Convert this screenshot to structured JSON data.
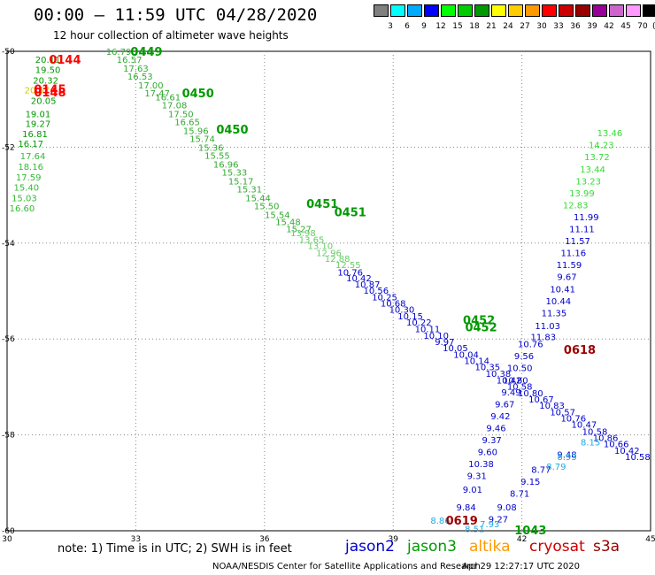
{
  "header": {
    "title": "00:00 – 11:59 UTC 04/28/2020",
    "subtitle": "12 hour collection of altimeter wave heights"
  },
  "color_scale": {
    "swatches": [
      "#808080",
      "#00ffff",
      "#00aaff",
      "#0000ff",
      "#00ff00",
      "#00cc00",
      "#009900",
      "#ffff00",
      "#ffcc00",
      "#ff9900",
      "#ff0000",
      "#cc0000",
      "#990000",
      "#990099",
      "#cc66cc",
      "#ff99ff",
      "#000000"
    ],
    "labels": [
      "3",
      "6",
      "9",
      "12",
      "15",
      "18",
      "21",
      "24",
      "27",
      "30",
      "33",
      "36",
      "39",
      "42",
      "45",
      "70"
    ],
    "unit": "(ft)"
  },
  "footer": {
    "note": "note: 1) Time is in UTC; 2) SWH is in feet",
    "satellites": [
      {
        "name": "jason2",
        "color": "#0000cc"
      },
      {
        "name": "jason3",
        "color": "#009900"
      },
      {
        "name": "altika",
        "color": "#ff9900"
      },
      {
        "name": "cryosat",
        "color": "#cc0000"
      },
      {
        "name": "s3a",
        "color": "#990000"
      }
    ],
    "credit": "NOAA/NESDIS Center for Satellite Applications and Research",
    "timestamp": "Apr 29 12:27:17 UTC 2020"
  },
  "chart_data": {
    "type": "scatter",
    "xlim": [
      30,
      45
    ],
    "ylim": [
      -60,
      -50
    ],
    "x_ticks": [
      30,
      33,
      36,
      39,
      42,
      45
    ],
    "y_ticks": [
      -50,
      -52,
      -54,
      -56,
      -58,
      -60
    ],
    "grid": true,
    "pass_times": [
      {
        "text": "0144",
        "lon": 31.35,
        "lat": -50.17,
        "color": "#ff0000"
      },
      {
        "text": "0145",
        "lon": 31.0,
        "lat": -50.78,
        "color": "#ff0000"
      },
      {
        "text": "0148",
        "lon": 31.0,
        "lat": -50.85,
        "color": "#ff0000"
      },
      {
        "text": "0449",
        "lon": 33.25,
        "lat": -50.0,
        "color": "#009900"
      },
      {
        "text": "0450",
        "lon": 34.45,
        "lat": -50.87,
        "color": "#009900"
      },
      {
        "text": "0450",
        "lon": 35.25,
        "lat": -51.62,
        "color": "#009900"
      },
      {
        "text": "0451",
        "lon": 37.35,
        "lat": -53.17,
        "color": "#009900"
      },
      {
        "text": "0451",
        "lon": 38.0,
        "lat": -53.35,
        "color": "#009900"
      },
      {
        "text": "0452",
        "lon": 41.0,
        "lat": -55.6,
        "color": "#009900"
      },
      {
        "text": "0452",
        "lon": 41.05,
        "lat": -55.75,
        "color": "#009900"
      },
      {
        "text": "0618",
        "lon": 43.35,
        "lat": -56.22,
        "color": "#990000"
      },
      {
        "text": "0619",
        "lon": 40.6,
        "lat": -59.78,
        "color": "#990000"
      },
      {
        "text": "1043",
        "lon": 42.2,
        "lat": -59.98,
        "color": "#009900"
      }
    ],
    "tracks": [
      {
        "satellite": "jason3",
        "color": "#009900",
        "points": [
          {
            "lon": 30.95,
            "lat": -50.17,
            "v": "20.11"
          },
          {
            "lon": 30.95,
            "lat": -50.38,
            "v": "19.50"
          },
          {
            "lon": 30.9,
            "lat": -50.6,
            "v": "20.32"
          },
          {
            "lon": 30.85,
            "lat": -51.02,
            "v": "20.05"
          },
          {
            "lon": 30.72,
            "lat": -51.3,
            "v": "19.01"
          },
          {
            "lon": 30.72,
            "lat": -51.5,
            "v": "19.27"
          },
          {
            "lon": 30.65,
            "lat": -51.72,
            "v": "16.81"
          },
          {
            "lon": 30.55,
            "lat": -51.92,
            "v": "16.17"
          }
        ]
      },
      {
        "satellite": "jason3",
        "color": "#33bb33",
        "points": [
          {
            "lon": 30.6,
            "lat": -52.18,
            "v": "17.64"
          },
          {
            "lon": 30.55,
            "lat": -52.4,
            "v": "18.16"
          },
          {
            "lon": 30.5,
            "lat": -52.62,
            "v": "17.59"
          },
          {
            "lon": 30.45,
            "lat": -52.83,
            "v": "15.40"
          },
          {
            "lon": 30.4,
            "lat": -53.05,
            "v": "15.03"
          },
          {
            "lon": 30.35,
            "lat": -53.27,
            "v": "16.60"
          }
        ]
      },
      {
        "satellite": "altika",
        "color": "#cccc00",
        "points": [
          {
            "lon": 30.7,
            "lat": -50.8,
            "v": "20.57"
          }
        ]
      },
      {
        "satellite": "jason3",
        "color": "#33aa33",
        "points": [
          {
            "lon": 32.6,
            "lat": -50.0,
            "v": "16.79"
          },
          {
            "lon": 32.85,
            "lat": -50.17,
            "v": "16.57"
          },
          {
            "lon": 33.0,
            "lat": -50.35,
            "v": "17.63"
          },
          {
            "lon": 33.1,
            "lat": -50.52,
            "v": "16.53"
          },
          {
            "lon": 33.35,
            "lat": -50.7,
            "v": "17.00"
          },
          {
            "lon": 33.5,
            "lat": -50.87,
            "v": "17.47"
          },
          {
            "lon": 33.75,
            "lat": -50.95,
            "v": "16.61"
          },
          {
            "lon": 33.9,
            "lat": -51.12,
            "v": "17.08"
          },
          {
            "lon": 34.05,
            "lat": -51.3,
            "v": "17.50"
          },
          {
            "lon": 34.2,
            "lat": -51.47,
            "v": "16.65"
          },
          {
            "lon": 34.4,
            "lat": -51.65,
            "v": "15.96"
          },
          {
            "lon": 34.55,
            "lat": -51.82,
            "v": "15.74"
          },
          {
            "lon": 34.75,
            "lat": -52.0,
            "v": "15.36"
          },
          {
            "lon": 34.9,
            "lat": -52.17,
            "v": "15.55"
          },
          {
            "lon": 35.1,
            "lat": -52.35,
            "v": "16.96"
          },
          {
            "lon": 35.3,
            "lat": -52.52,
            "v": "15.33"
          },
          {
            "lon": 35.45,
            "lat": -52.7,
            "v": "15.17"
          },
          {
            "lon": 35.65,
            "lat": -52.87,
            "v": "15.31"
          },
          {
            "lon": 35.85,
            "lat": -53.05,
            "v": "15.44"
          },
          {
            "lon": 36.05,
            "lat": -53.22,
            "v": "15.50"
          },
          {
            "lon": 36.3,
            "lat": -53.4,
            "v": "15.54"
          },
          {
            "lon": 36.55,
            "lat": -53.55,
            "v": "15.48"
          },
          {
            "lon": 36.8,
            "lat": -53.7,
            "v": "15.27"
          }
        ]
      },
      {
        "satellite": "jason3",
        "color": "#66cc66",
        "points": [
          {
            "lon": 36.9,
            "lat": -53.78,
            "v": "13.98"
          },
          {
            "lon": 37.1,
            "lat": -53.92,
            "v": "13.65"
          },
          {
            "lon": 37.3,
            "lat": -54.05,
            "v": "13.10"
          },
          {
            "lon": 37.5,
            "lat": -54.2,
            "v": "12.96"
          },
          {
            "lon": 37.7,
            "lat": -54.32,
            "v": "12.88"
          },
          {
            "lon": 37.95,
            "lat": -54.45,
            "v": "12.55"
          }
        ]
      },
      {
        "satellite": "jason2",
        "color": "#0000cc",
        "points": [
          {
            "lon": 38.0,
            "lat": -54.6,
            "v": "10.76"
          },
          {
            "lon": 38.2,
            "lat": -54.72,
            "v": "10.42"
          },
          {
            "lon": 38.4,
            "lat": -54.85,
            "v": "10.87"
          },
          {
            "lon": 38.6,
            "lat": -54.98,
            "v": "10.56"
          },
          {
            "lon": 38.8,
            "lat": -55.12,
            "v": "10.25"
          },
          {
            "lon": 39.0,
            "lat": -55.25,
            "v": "10.68"
          },
          {
            "lon": 39.2,
            "lat": -55.38,
            "v": "10.30"
          },
          {
            "lon": 39.4,
            "lat": -55.52,
            "v": "10.15"
          },
          {
            "lon": 39.6,
            "lat": -55.65,
            "v": "10.22"
          },
          {
            "lon": 39.8,
            "lat": -55.78,
            "v": "10.11"
          },
          {
            "lon": 40.0,
            "lat": -55.92,
            "v": "10.10"
          },
          {
            "lon": 40.2,
            "lat": -56.05,
            "v": "9.97"
          },
          {
            "lon": 40.45,
            "lat": -56.18,
            "v": "10.05"
          },
          {
            "lon": 40.7,
            "lat": -56.32,
            "v": "10.04"
          },
          {
            "lon": 40.95,
            "lat": -56.45,
            "v": "10.14"
          },
          {
            "lon": 41.2,
            "lat": -56.58,
            "v": "10.35"
          },
          {
            "lon": 41.45,
            "lat": -56.72,
            "v": "10.38"
          },
          {
            "lon": 41.7,
            "lat": -56.85,
            "v": "10.42"
          },
          {
            "lon": 41.95,
            "lat": -56.98,
            "v": "10.58"
          },
          {
            "lon": 42.2,
            "lat": -57.12,
            "v": "10.80"
          },
          {
            "lon": 42.45,
            "lat": -57.25,
            "v": "10.67"
          },
          {
            "lon": 42.7,
            "lat": -57.38,
            "v": "10.83"
          },
          {
            "lon": 42.95,
            "lat": -57.52,
            "v": "10.57"
          },
          {
            "lon": 43.2,
            "lat": -57.65,
            "v": "10.76"
          },
          {
            "lon": 43.45,
            "lat": -57.78,
            "v": "10.47"
          },
          {
            "lon": 43.7,
            "lat": -57.92,
            "v": "10.58"
          },
          {
            "lon": 43.95,
            "lat": -58.05,
            "v": "10.86"
          },
          {
            "lon": 44.2,
            "lat": -58.18,
            "v": "10.66"
          },
          {
            "lon": 44.45,
            "lat": -58.32,
            "v": "10.42"
          },
          {
            "lon": 44.7,
            "lat": -58.45,
            "v": "10.58"
          }
        ]
      },
      {
        "satellite": "jason2",
        "color": "#0000cc",
        "points": [
          {
            "lon": 40.7,
            "lat": -59.5,
            "v": "9.84"
          },
          {
            "lon": 40.85,
            "lat": -59.13,
            "v": "9.01"
          },
          {
            "lon": 40.95,
            "lat": -58.85,
            "v": "9.31"
          },
          {
            "lon": 41.05,
            "lat": -58.6,
            "v": "10.38"
          },
          {
            "lon": 41.2,
            "lat": -58.35,
            "v": "9.60"
          },
          {
            "lon": 41.3,
            "lat": -58.1,
            "v": "9.37"
          },
          {
            "lon": 41.4,
            "lat": -57.85,
            "v": "9.46"
          },
          {
            "lon": 41.5,
            "lat": -57.6,
            "v": "9.42"
          },
          {
            "lon": 41.6,
            "lat": -57.35,
            "v": "9.67"
          },
          {
            "lon": 41.75,
            "lat": -57.1,
            "v": "9.49"
          },
          {
            "lon": 41.85,
            "lat": -56.85,
            "v": "10.80"
          },
          {
            "lon": 41.95,
            "lat": -56.6,
            "v": "10.50"
          },
          {
            "lon": 42.05,
            "lat": -56.35,
            "v": "9.56"
          },
          {
            "lon": 42.2,
            "lat": -56.1,
            "v": "10.76"
          },
          {
            "lon": 42.5,
            "lat": -55.95,
            "v": "11.83"
          },
          {
            "lon": 42.6,
            "lat": -55.72,
            "v": "11.03"
          },
          {
            "lon": 42.75,
            "lat": -55.45,
            "v": "11.35"
          },
          {
            "lon": 42.85,
            "lat": -55.2,
            "v": "10.44"
          },
          {
            "lon": 42.95,
            "lat": -54.95,
            "v": "10.41"
          },
          {
            "lon": 43.05,
            "lat": -54.7,
            "v": "9.67"
          },
          {
            "lon": 43.1,
            "lat": -54.45,
            "v": "11.59"
          },
          {
            "lon": 43.2,
            "lat": -54.2,
            "v": "11.16"
          },
          {
            "lon": 43.3,
            "lat": -53.95,
            "v": "11.57"
          },
          {
            "lon": 43.4,
            "lat": -53.7,
            "v": "11.11"
          },
          {
            "lon": 43.5,
            "lat": -53.45,
            "v": "11.99"
          }
        ]
      },
      {
        "satellite": "jason3",
        "color": "#33dd33",
        "points": [
          {
            "lon": 43.25,
            "lat": -53.2,
            "v": "12.83"
          },
          {
            "lon": 43.4,
            "lat": -52.95,
            "v": "13.99"
          },
          {
            "lon": 43.55,
            "lat": -52.7,
            "v": "13.23"
          },
          {
            "lon": 43.65,
            "lat": -52.45,
            "v": "13.44"
          },
          {
            "lon": 43.75,
            "lat": -52.2,
            "v": "13.72"
          },
          {
            "lon": 43.85,
            "lat": -51.95,
            "v": "14.23"
          },
          {
            "lon": 44.05,
            "lat": -51.7,
            "v": "13.46"
          }
        ]
      },
      {
        "satellite": "jason2",
        "color": "#0000cc",
        "points": [
          {
            "lon": 41.45,
            "lat": -59.75,
            "v": "9.27"
          },
          {
            "lon": 41.65,
            "lat": -59.5,
            "v": "9.08"
          },
          {
            "lon": 41.95,
            "lat": -59.22,
            "v": "8.71"
          },
          {
            "lon": 42.2,
            "lat": -58.97,
            "v": "9.15"
          },
          {
            "lon": 42.45,
            "lat": -58.72,
            "v": "8.77"
          },
          {
            "lon": 43.05,
            "lat": -58.4,
            "v": "9.48"
          }
        ]
      },
      {
        "satellite": "altika",
        "color": "#22aadd",
        "points": [
          {
            "lon": 40.1,
            "lat": -59.78,
            "v": "8.86"
          },
          {
            "lon": 40.9,
            "lat": -59.95,
            "v": "8.51"
          },
          {
            "lon": 41.25,
            "lat": -59.85,
            "v": "7.93"
          },
          {
            "lon": 42.8,
            "lat": -58.65,
            "v": "8.79"
          },
          {
            "lon": 43.05,
            "lat": -58.45,
            "v": "8.93"
          },
          {
            "lon": 43.6,
            "lat": -58.15,
            "v": "8.15"
          }
        ]
      }
    ]
  }
}
